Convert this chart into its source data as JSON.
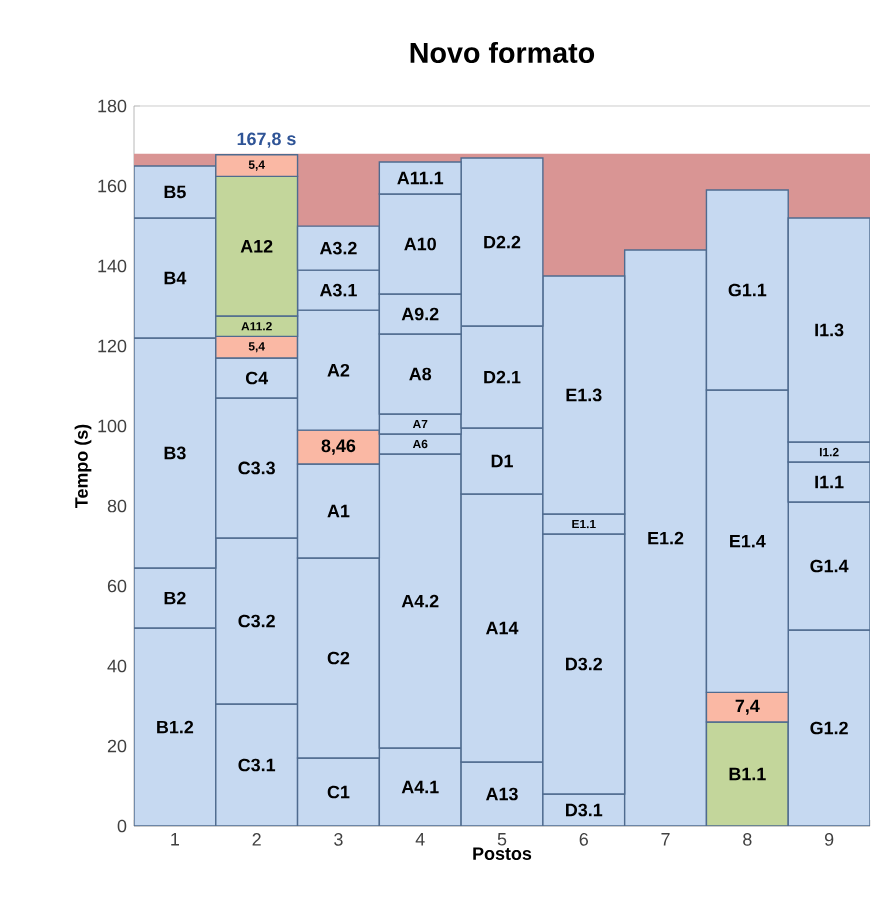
{
  "chart_data": {
    "type": "bar",
    "title": "Novo formato",
    "xlabel": "Postos",
    "ylabel": "Tempo (s)",
    "categories": [
      "1",
      "2",
      "3",
      "4",
      "5",
      "6",
      "7",
      "8",
      "9"
    ],
    "stacked": true,
    "ylim": [
      0,
      180
    ],
    "yticks": [
      0,
      20,
      40,
      60,
      80,
      100,
      120,
      140,
      160,
      180
    ],
    "grid": "y",
    "ref_lines": [
      {
        "axis": "y",
        "value": 167.8,
        "label": "167,8 s",
        "color": "#d99594"
      }
    ],
    "series": [
      {
        "values": [
          49.5,
          30.5,
          17,
          19.5,
          16,
          8,
          144,
          26,
          49
        ],
        "colors": [
          "#c6d9f1",
          "#c6d9f1",
          "#c6d9f1",
          "#c6d9f1",
          "#c6d9f1",
          "#c6d9f1",
          "#c6d9f1",
          "#c3d69b",
          "#c6d9f1"
        ],
        "value_labels": [
          "B1.2",
          "C3.1",
          "C1",
          "A4.1",
          "A13",
          "D3.1",
          "E1.2",
          "B1.1",
          "G1.2"
        ]
      },
      {
        "values": [
          15,
          41.5,
          50,
          73.5,
          67,
          65,
          null,
          7.4,
          32
        ],
        "colors": [
          "#c6d9f1",
          "#c6d9f1",
          "#c6d9f1",
          "#c6d9f1",
          "#c6d9f1",
          "#c6d9f1",
          null,
          "#fab8a4",
          "#c6d9f1"
        ],
        "value_labels": [
          "B2",
          "C3.2",
          "C2",
          "A4.2",
          "A14",
          "D3.2",
          null,
          "7,4",
          "G1.4"
        ]
      },
      {
        "values": [
          57.5,
          35,
          23.5,
          5,
          16.5,
          5,
          null,
          75.6,
          10
        ],
        "colors": [
          "#c6d9f1",
          "#c6d9f1",
          "#c6d9f1",
          "#c6d9f1",
          "#c6d9f1",
          "#c6d9f1",
          null,
          "#c6d9f1",
          "#c6d9f1"
        ],
        "value_labels": [
          "B3",
          "C3.3",
          "A1",
          "A6",
          "D1",
          "E1.1",
          null,
          "E1.4",
          "I1.1"
        ]
      },
      {
        "values": [
          30,
          10,
          8.46,
          5,
          25.5,
          59.5,
          null,
          50,
          5
        ],
        "colors": [
          "#c6d9f1",
          "#c6d9f1",
          "#fab8a4",
          "#c6d9f1",
          "#c6d9f1",
          "#c6d9f1",
          null,
          "#c6d9f1",
          "#c6d9f1"
        ],
        "value_labels": [
          "B4",
          "C4",
          "8,46",
          "A7",
          "D2.1",
          "E1.3",
          null,
          "G1.1",
          "I1.2"
        ]
      },
      {
        "values": [
          13,
          5.4,
          30,
          20,
          42,
          null,
          null,
          null,
          56
        ],
        "colors": [
          "#c6d9f1",
          "#fab8a4",
          "#c6d9f1",
          "#c6d9f1",
          "#c6d9f1",
          null,
          null,
          null,
          "#c6d9f1"
        ],
        "value_labels": [
          "B5",
          "5,4",
          "A2",
          "A8",
          "D2.2",
          null,
          null,
          null,
          "I1.3"
        ]
      },
      {
        "values": [
          null,
          5.1,
          10,
          10,
          null,
          null,
          null,
          null,
          null
        ],
        "colors": [
          null,
          "#c3d69b",
          "#c6d9f1",
          "#c6d9f1",
          null,
          null,
          null,
          null,
          null
        ],
        "value_labels": [
          null,
          "A11.2",
          "A3.1",
          "A9.2",
          null,
          null,
          null,
          null,
          null
        ]
      },
      {
        "values": [
          null,
          34.9,
          11,
          25,
          null,
          null,
          null,
          null,
          null
        ],
        "colors": [
          null,
          "#c3d69b",
          "#c6d9f1",
          "#c6d9f1",
          null,
          null,
          null,
          null,
          null
        ],
        "value_labels": [
          null,
          "A12",
          "A3.2",
          "A10",
          null,
          null,
          null,
          null,
          null
        ]
      },
      {
        "values": [
          null,
          5.4,
          null,
          8,
          null,
          null,
          null,
          null,
          null
        ],
        "colors": [
          null,
          "#fab8a4",
          null,
          "#c6d9f1",
          null,
          null,
          null,
          null,
          null
        ],
        "value_labels": [
          null,
          "5,4",
          null,
          "A11.1",
          null,
          null,
          null,
          null,
          null
        ]
      }
    ]
  }
}
